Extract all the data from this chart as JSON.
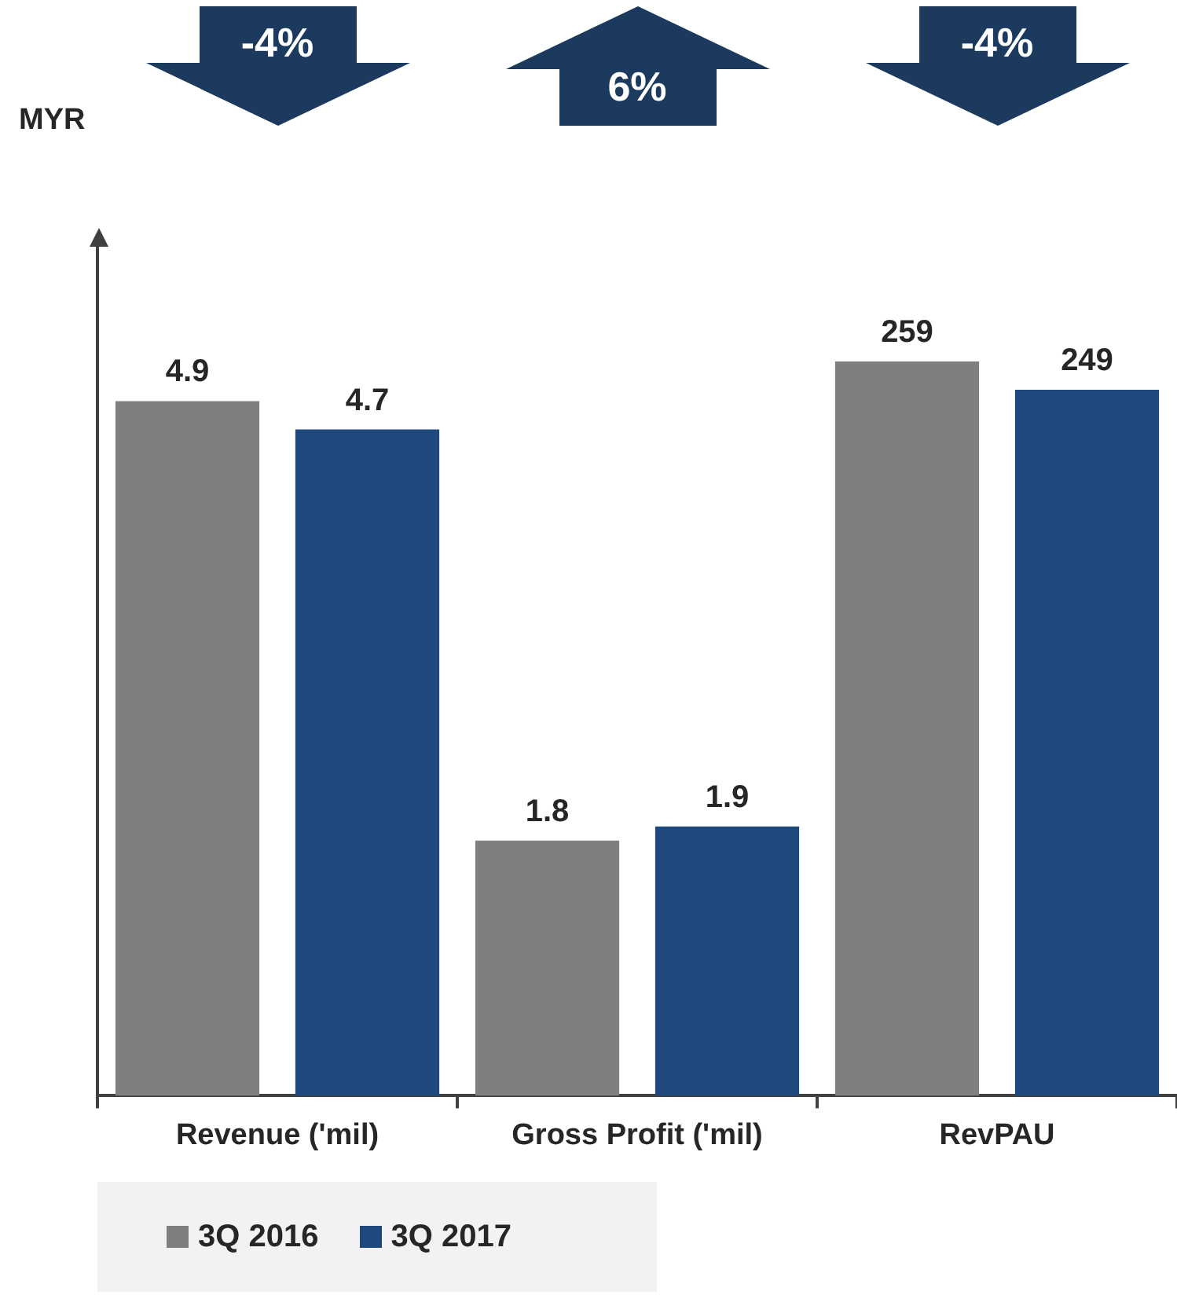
{
  "chart_data": {
    "type": "bar",
    "ylabel": "MYR",
    "categories": [
      "Revenue ('mil)",
      "Gross Profit ('mil)",
      "RevPAU"
    ],
    "series": [
      {
        "name": "3Q 2016",
        "color": "#7f7f7f",
        "values": [
          4.9,
          1.8,
          null
        ]
      },
      {
        "name": "3Q 2017",
        "color": "#1f497d",
        "values": [
          4.7,
          1.9,
          null
        ]
      },
      {
        "color": "#7f7f7f",
        "values": [
          null,
          null,
          259
        ],
        "axis": "y2"
      },
      {
        "color": "#1f497d",
        "values": [
          null,
          null,
          249
        ],
        "axis": "y2"
      }
    ],
    "ylim": [
      0,
      6
    ],
    "y2lim": [
      0,
      300
    ],
    "tick_labels": "x",
    "data_labels": true,
    "legend": "bottom",
    "annotations": [
      "-4%",
      "6%",
      "-4%"
    ]
  }
}
